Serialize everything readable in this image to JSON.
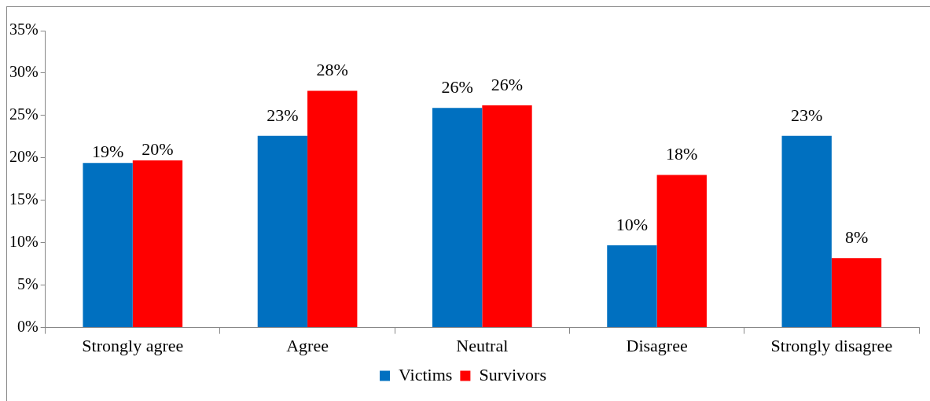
{
  "chart_data": {
    "type": "bar",
    "categories": [
      "Strongly agree",
      "Agree",
      "Neutral",
      "Disagree",
      "Strongly disagree"
    ],
    "series": [
      {
        "name": "Victims",
        "color": "#0070c0",
        "values": [
          19.4,
          22.6,
          25.9,
          9.7,
          22.6
        ],
        "value_labels": [
          "19%",
          "23%",
          "26%",
          "10%",
          "23%"
        ]
      },
      {
        "name": "Survivors",
        "color": "#ff0000",
        "values": [
          19.7,
          27.9,
          26.2,
          18.0,
          8.2
        ],
        "value_labels": [
          "20%",
          "28%",
          "26%",
          "18%",
          "8%"
        ]
      }
    ],
    "ylim": [
      0,
      35
    ],
    "yticks": [
      {
        "value": 0,
        "label": "0%"
      },
      {
        "value": 5,
        "label": "5%"
      },
      {
        "value": 10,
        "label": "10%"
      },
      {
        "value": 15,
        "label": "15%"
      },
      {
        "value": 20,
        "label": "20%"
      },
      {
        "value": 25,
        "label": "25%"
      },
      {
        "value": 30,
        "label": "30%"
      },
      {
        "value": 35,
        "label": "35%"
      }
    ],
    "grid": false,
    "legend": "bottom"
  }
}
